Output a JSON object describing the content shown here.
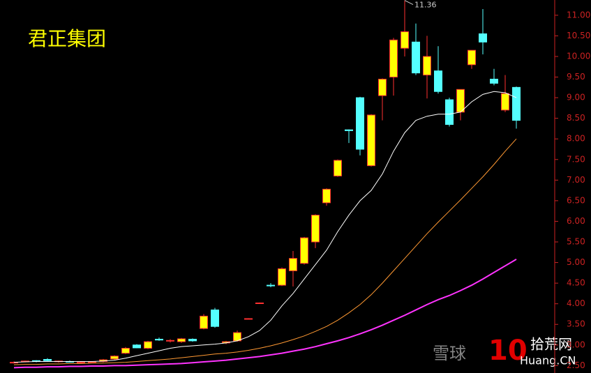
{
  "chart_data": {
    "type": "candlestick",
    "title": "君正集团",
    "open": [
      2.57,
      2.6,
      2.62,
      2.65,
      2.6,
      2.6,
      2.58,
      2.58,
      2.6,
      2.66,
      2.8,
      3.0,
      2.92,
      3.14,
      3.1,
      3.08,
      3.14,
      3.4,
      3.85,
      3.05,
      3.1,
      3.63,
      4.02,
      4.45,
      4.45,
      4.8,
      4.98,
      5.5,
      6.45,
      7.1,
      8.22,
      9.0,
      7.35,
      9.05,
      9.5,
      10.2,
      10.35,
      9.55,
      9.65,
      8.95,
      8.65,
      9.8,
      10.55,
      9.45,
      8.7,
      9.25
    ],
    "high": [
      2.6,
      2.62,
      2.63,
      2.68,
      2.62,
      2.62,
      2.6,
      2.6,
      2.66,
      2.75,
      2.95,
      3.02,
      3.1,
      3.18,
      3.14,
      3.17,
      3.16,
      3.75,
      3.9,
      3.1,
      3.35,
      3.65,
      4.03,
      4.5,
      4.88,
      5.28,
      5.62,
      6.17,
      6.8,
      7.5,
      8.23,
      9.02,
      8.6,
      9.47,
      10.45,
      11.36,
      10.8,
      10.5,
      10.25,
      9.0,
      9.2,
      10.15,
      11.15,
      9.7,
      9.55,
      9.27
    ],
    "low": [
      2.55,
      2.58,
      2.58,
      2.6,
      2.57,
      2.58,
      2.56,
      2.56,
      2.58,
      2.64,
      2.78,
      2.92,
      2.9,
      3.1,
      3.06,
      3.05,
      3.08,
      3.38,
      3.42,
      3.02,
      3.08,
      3.62,
      4.01,
      4.4,
      4.43,
      4.42,
      4.95,
      5.35,
      6.38,
      7.08,
      7.9,
      7.6,
      7.33,
      8.45,
      9.05,
      10.0,
      9.55,
      8.98,
      9.1,
      8.3,
      8.45,
      9.7,
      10.05,
      9.3,
      8.65,
      8.25
    ],
    "close": [
      2.58,
      2.61,
      2.6,
      2.62,
      2.61,
      2.59,
      2.58,
      2.59,
      2.64,
      2.73,
      2.92,
      2.93,
      3.08,
      3.12,
      3.11,
      3.15,
      3.1,
      3.7,
      3.45,
      3.08,
      3.3,
      3.64,
      4.02,
      4.44,
      4.85,
      5.1,
      5.6,
      6.15,
      6.78,
      7.48,
      8.2,
      7.75,
      8.58,
      9.45,
      10.4,
      10.6,
      9.6,
      10.0,
      9.15,
      8.35,
      9.2,
      10.15,
      10.35,
      9.35,
      9.1,
      8.45
    ],
    "up_color": "#ffff00",
    "up_border": "#ff3030",
    "down_color": "#54ffff",
    "lines": [
      {
        "color": "#ffffff",
        "values": [
          2.58,
          2.59,
          2.6,
          2.6,
          2.6,
          2.6,
          2.6,
          2.6,
          2.61,
          2.63,
          2.68,
          2.74,
          2.8,
          2.86,
          2.92,
          2.96,
          2.98,
          3.0,
          3.02,
          3.05,
          3.1,
          3.2,
          3.35,
          3.6,
          3.95,
          4.25,
          4.6,
          4.95,
          5.3,
          5.75,
          6.15,
          6.5,
          6.75,
          7.15,
          7.7,
          8.15,
          8.45,
          8.55,
          8.6,
          8.6,
          8.65,
          8.9,
          9.08,
          9.15,
          9.12,
          9.0
        ]
      },
      {
        "color": "#ff9933",
        "values": [
          2.52,
          2.53,
          2.53,
          2.54,
          2.54,
          2.55,
          2.55,
          2.56,
          2.56,
          2.57,
          2.58,
          2.6,
          2.62,
          2.64,
          2.66,
          2.69,
          2.72,
          2.75,
          2.78,
          2.8,
          2.83,
          2.87,
          2.92,
          2.98,
          3.05,
          3.13,
          3.22,
          3.33,
          3.45,
          3.6,
          3.78,
          3.98,
          4.22,
          4.5,
          4.8,
          5.1,
          5.4,
          5.7,
          5.98,
          6.25,
          6.52,
          6.8,
          7.08,
          7.38,
          7.7,
          8.0
        ]
      },
      {
        "color": "#ff33ff",
        "values": [
          2.45,
          2.46,
          2.46,
          2.47,
          2.47,
          2.48,
          2.48,
          2.49,
          2.49,
          2.5,
          2.5,
          2.51,
          2.52,
          2.53,
          2.54,
          2.55,
          2.57,
          2.59,
          2.61,
          2.63,
          2.66,
          2.69,
          2.72,
          2.76,
          2.8,
          2.85,
          2.9,
          2.96,
          3.03,
          3.1,
          3.18,
          3.27,
          3.37,
          3.48,
          3.6,
          3.72,
          3.85,
          3.98,
          4.1,
          4.2,
          4.32,
          4.45,
          4.6,
          4.76,
          4.92,
          5.08
        ]
      }
    ],
    "max_marker": 11.36,
    "ylim": [
      2.32,
      11.37
    ],
    "yticks": [
      {
        "value": 2.5,
        "label": "2.50"
      },
      {
        "value": 3,
        "label": "3.00"
      },
      {
        "value": 3.5,
        "label": "3.50"
      },
      {
        "value": 4,
        "label": "4.00"
      },
      {
        "value": 4.5,
        "label": "4.50"
      },
      {
        "value": 5,
        "label": "5.00"
      },
      {
        "value": 5.5,
        "label": "5.50"
      },
      {
        "value": 6,
        "label": "6.00"
      },
      {
        "value": 6.5,
        "label": "6.50"
      },
      {
        "value": 7,
        "label": "7.00"
      },
      {
        "value": 7.5,
        "label": "7.50"
      },
      {
        "value": 8,
        "label": "8.00"
      },
      {
        "value": 8.5,
        "label": "8.50"
      },
      {
        "value": 9,
        "label": "9.00"
      },
      {
        "value": 9.5,
        "label": "9.50"
      },
      {
        "value": 10,
        "label": "10.00"
      },
      {
        "value": 10.5,
        "label": "10.50"
      },
      {
        "value": 11,
        "label": "11.00"
      }
    ],
    "axis_color": "#cc2222"
  },
  "watermark": {
    "xueqiu": "雪球",
    "logo_number": "10",
    "logo_name": "拾荒网",
    "logo_site": "Huang.CN"
  }
}
